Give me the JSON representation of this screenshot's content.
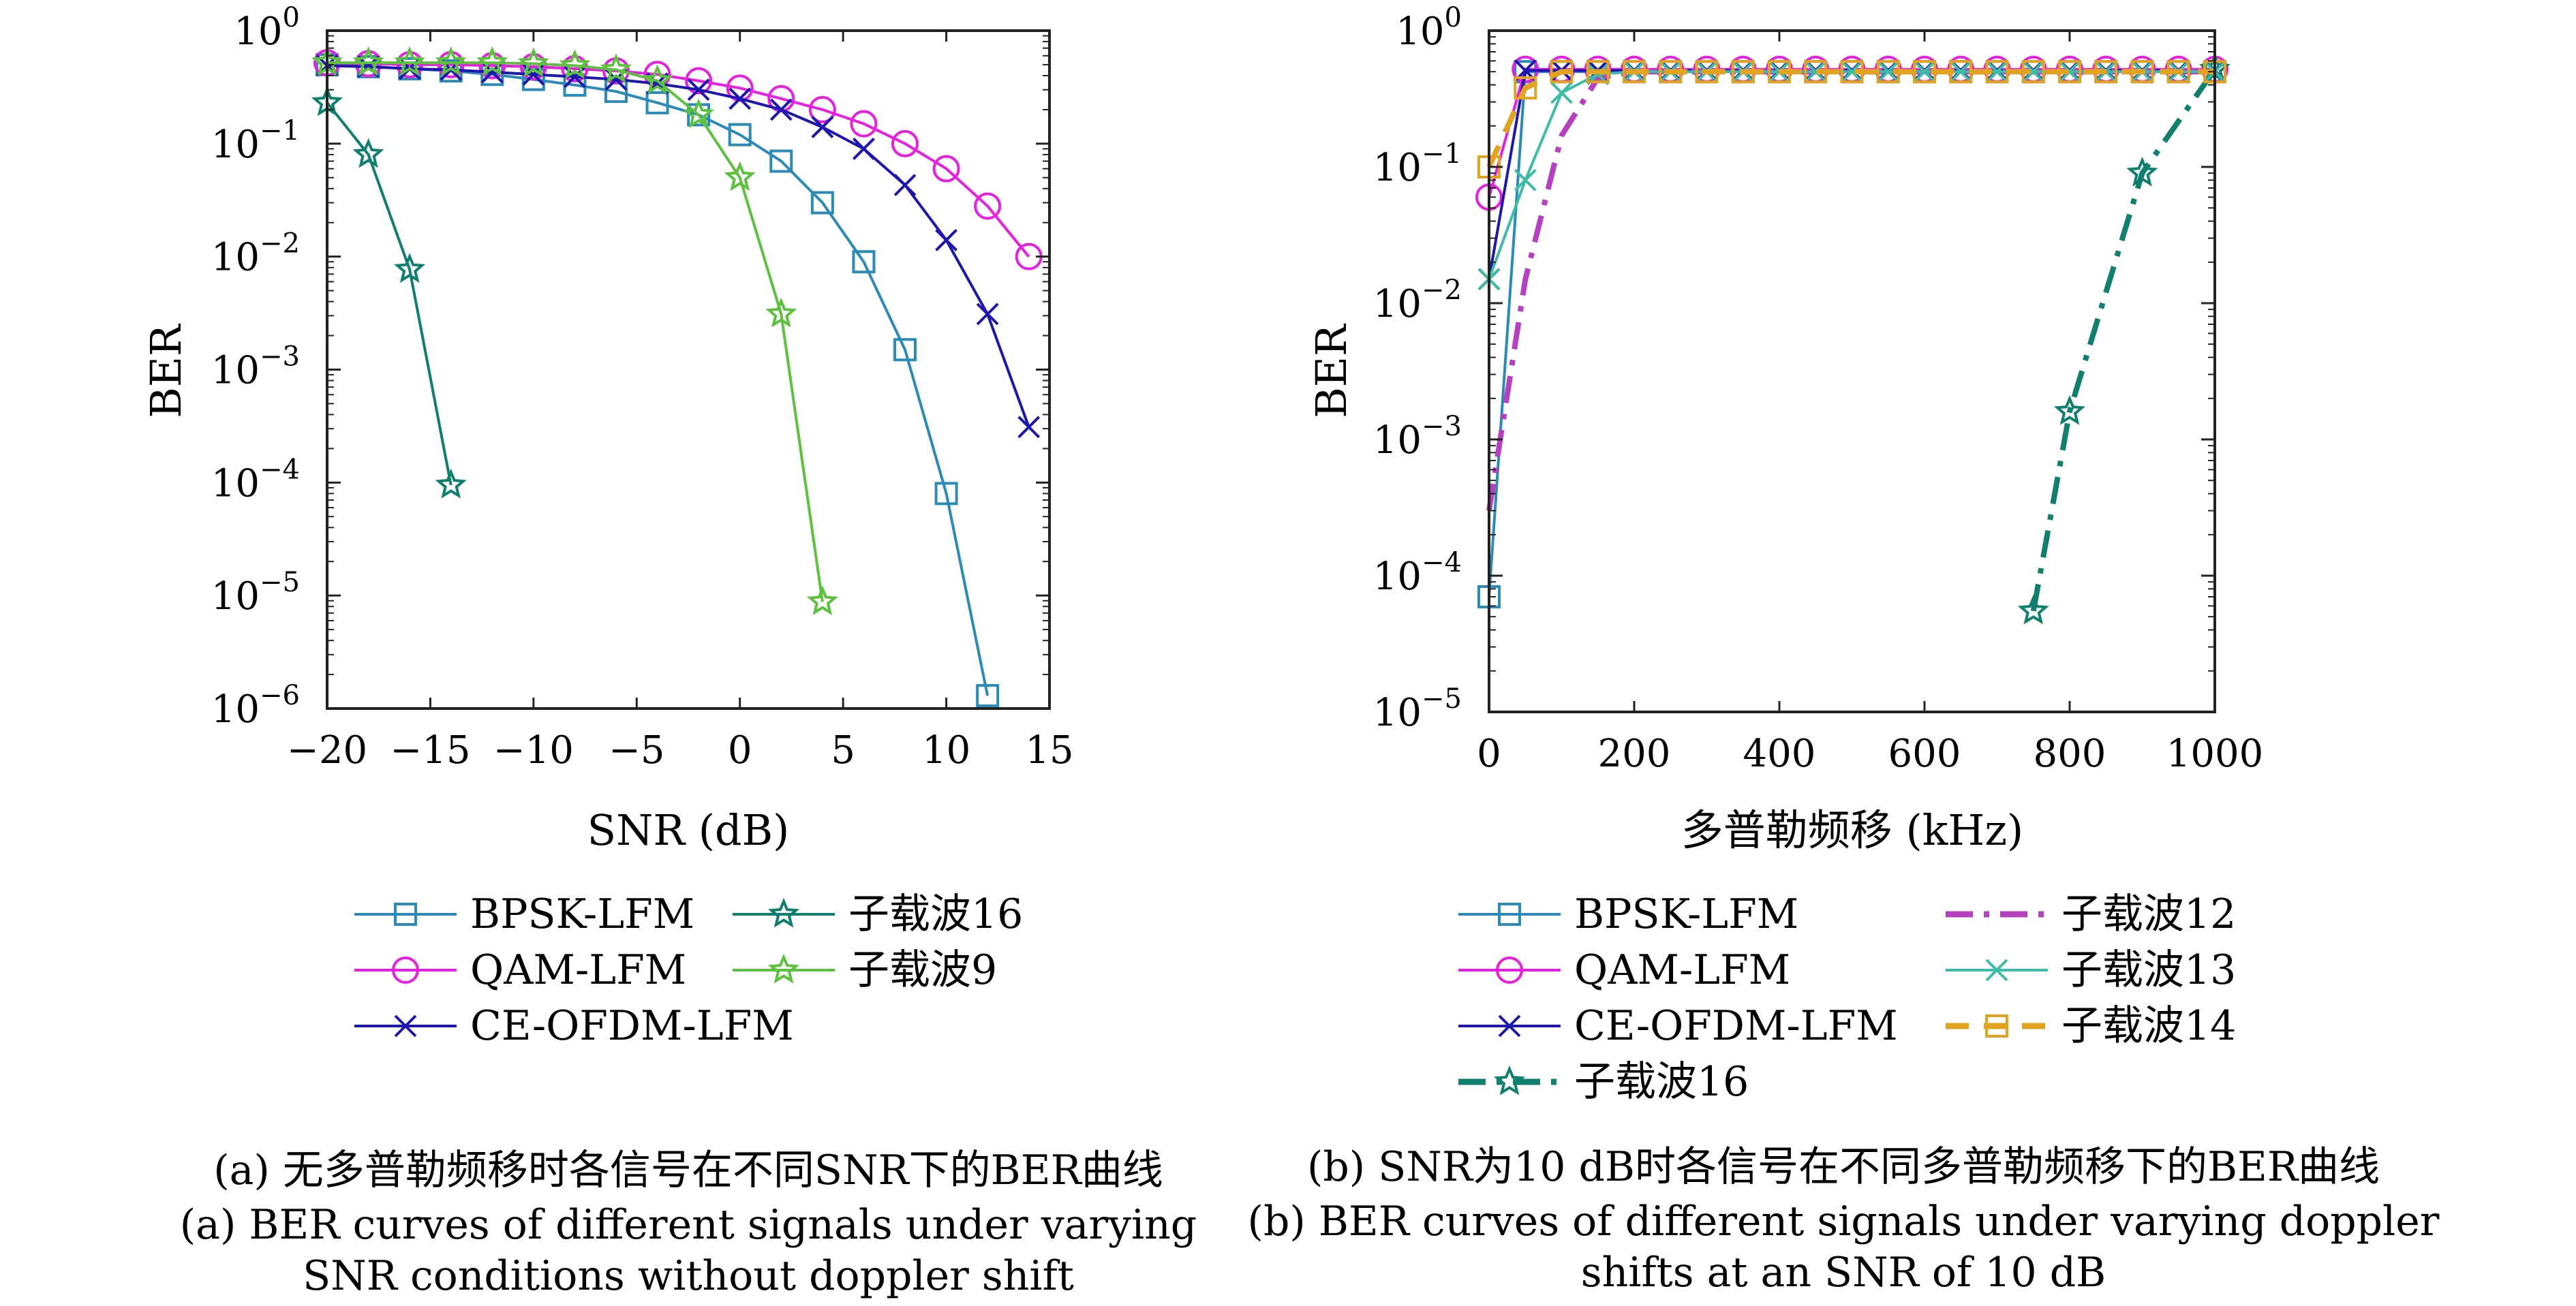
{
  "chart_data": [
    {
      "type": "line",
      "caption_cn": "(a) 无多普勒频移时各信号在不同SNR下的BER曲线",
      "caption_en_1": "(a) BER curves of different signals under varying",
      "caption_en_2": "SNR conditions without doppler shift",
      "xlabel": "SNR (dB)",
      "ylabel": "BER",
      "xlim": [
        -20,
        15
      ],
      "ylim": [
        1e-06,
        1
      ],
      "yscale": "log",
      "xticks": [
        "−20",
        "−15",
        "−10",
        "−5",
        "0",
        "5",
        "10",
        "15"
      ],
      "yticks_base": [
        "10",
        "10",
        "10",
        "10",
        "10",
        "10",
        "10"
      ],
      "yticks_exp": [
        "−6",
        "−5",
        "−4",
        "−3",
        "−2",
        "−1",
        "0"
      ],
      "legend_placement": "bottom",
      "series": [
        {
          "name": "BPSK-LFM",
          "color": "#2a8ab8",
          "marker": "square",
          "dash": "solid",
          "x": [
            -20,
            -18,
            -16,
            -14,
            -12,
            -10,
            -8,
            -6,
            -4,
            -2,
            0,
            2,
            4,
            6,
            8,
            10,
            12
          ],
          "y": [
            0.5,
            0.48,
            0.46,
            0.44,
            0.41,
            0.37,
            0.33,
            0.29,
            0.23,
            0.18,
            0.12,
            0.07,
            0.03,
            0.009,
            0.0015,
            8e-05,
            1.3e-06
          ]
        },
        {
          "name": "QAM-LFM",
          "color": "#e81ee0",
          "marker": "circle",
          "dash": "solid",
          "x": [
            -20,
            -18,
            -16,
            -14,
            -12,
            -10,
            -8,
            -6,
            -4,
            -2,
            0,
            2,
            4,
            6,
            8,
            10,
            12,
            14
          ],
          "y": [
            0.52,
            0.51,
            0.5,
            0.5,
            0.49,
            0.48,
            0.46,
            0.44,
            0.41,
            0.36,
            0.31,
            0.25,
            0.2,
            0.15,
            0.1,
            0.06,
            0.028,
            0.01
          ]
        },
        {
          "name": "CE-OFDM-LFM",
          "color": "#1d16b0",
          "marker": "x",
          "dash": "solid",
          "x": [
            -20,
            -18,
            -16,
            -14,
            -12,
            -10,
            -8,
            -6,
            -4,
            -2,
            0,
            2,
            4,
            6,
            8,
            10,
            12,
            14
          ],
          "y": [
            0.49,
            0.48,
            0.46,
            0.45,
            0.43,
            0.41,
            0.39,
            0.37,
            0.34,
            0.3,
            0.25,
            0.2,
            0.14,
            0.09,
            0.043,
            0.014,
            0.0031,
            0.00031
          ]
        },
        {
          "name": "子载波16",
          "color": "#0f7f6e",
          "marker": "star",
          "dash": "solid",
          "x": [
            -20,
            -18,
            -16,
            -14
          ],
          "y": [
            0.23,
            0.08,
            0.0077,
            9.5e-05
          ]
        },
        {
          "name": "子载波9",
          "color": "#5cc23e",
          "marker": "star",
          "dash": "solid",
          "x": [
            -20,
            -18,
            -16,
            -14,
            -12,
            -10,
            -8,
            -6,
            -4,
            -2,
            0,
            2,
            4
          ],
          "y": [
            0.52,
            0.52,
            0.52,
            0.52,
            0.52,
            0.51,
            0.49,
            0.45,
            0.36,
            0.18,
            0.05,
            0.0031,
            8.8e-06
          ]
        }
      ],
      "legend_order": [
        0,
        3,
        1,
        4,
        2
      ]
    },
    {
      "type": "line",
      "caption_cn": "(b) SNR为10 dB时各信号在不同多普勒频移下的BER曲线",
      "caption_en_1": "(b) BER curves of different signals under varying doppler",
      "caption_en_2": "shifts at an SNR of 10 dB",
      "xlabel": "多普勒频移 (kHz)",
      "ylabel": "BER",
      "xlim": [
        0,
        1000
      ],
      "ylim": [
        1e-05,
        1
      ],
      "yscale": "log",
      "xticks": [
        "0",
        "200",
        "400",
        "600",
        "800",
        "1000"
      ],
      "yticks_base": [
        "10",
        "10",
        "10",
        "10",
        "10",
        "10"
      ],
      "yticks_exp": [
        "−5",
        "−4",
        "−3",
        "−2",
        "−1",
        "0"
      ],
      "legend_placement": "bottom",
      "series": [
        {
          "name": "BPSK-LFM",
          "color": "#2a8ab8",
          "marker": "square",
          "dash": "solid",
          "x": [
            0,
            50,
            100,
            150,
            200,
            250,
            300,
            350,
            400,
            450,
            500,
            550,
            600,
            650,
            700,
            750,
            800,
            850,
            900,
            950,
            1000
          ],
          "y": [
            7e-05,
            0.5,
            0.5,
            0.5,
            0.5,
            0.5,
            0.5,
            0.5,
            0.5,
            0.5,
            0.5,
            0.5,
            0.5,
            0.5,
            0.5,
            0.5,
            0.5,
            0.5,
            0.5,
            0.5,
            0.5
          ]
        },
        {
          "name": "QAM-LFM",
          "color": "#e81ee0",
          "marker": "circle",
          "dash": "solid",
          "x": [
            0,
            50,
            100,
            150,
            200,
            250,
            300,
            350,
            400,
            450,
            500,
            550,
            600,
            650,
            700,
            750,
            800,
            850,
            900,
            950,
            1000
          ],
          "y": [
            0.06,
            0.52,
            0.52,
            0.52,
            0.52,
            0.52,
            0.52,
            0.52,
            0.52,
            0.52,
            0.52,
            0.52,
            0.52,
            0.52,
            0.52,
            0.52,
            0.52,
            0.52,
            0.52,
            0.52,
            0.52
          ]
        },
        {
          "name": "CE-OFDM-LFM",
          "color": "#1d16b0",
          "marker": "x",
          "dash": "solid",
          "x": [
            0,
            50,
            100,
            150,
            200,
            250,
            300,
            350,
            400,
            450,
            500,
            550,
            600,
            650,
            700,
            750,
            800,
            850,
            900,
            950,
            1000
          ],
          "y": [
            0.015,
            0.51,
            0.51,
            0.51,
            0.51,
            0.51,
            0.51,
            0.51,
            0.51,
            0.51,
            0.51,
            0.51,
            0.51,
            0.51,
            0.51,
            0.51,
            0.51,
            0.51,
            0.51,
            0.51,
            0.51
          ]
        },
        {
          "name": "子载波16",
          "color": "#0f7f6e",
          "marker": "star",
          "dash": "dashdot",
          "x": [
            750,
            800,
            900,
            1000
          ],
          "y": [
            5.5e-05,
            0.0016,
            0.09,
            0.52
          ]
        },
        {
          "name": "子载波12",
          "color": "#b640c0",
          "marker": "none",
          "dash": "dashdot",
          "x": [
            0,
            50,
            100,
            150,
            200,
            250,
            300,
            350,
            400,
            450,
            500,
            550,
            600,
            650,
            700,
            750,
            800,
            850,
            900,
            950,
            1000
          ],
          "y": [
            0.0003,
            0.015,
            0.17,
            0.45,
            0.5,
            0.5,
            0.5,
            0.5,
            0.5,
            0.5,
            0.5,
            0.5,
            0.5,
            0.5,
            0.5,
            0.5,
            0.5,
            0.5,
            0.5,
            0.5,
            0.5
          ]
        },
        {
          "name": "子载波13",
          "color": "#3ebda6",
          "marker": "x",
          "dash": "solid",
          "x": [
            0,
            50,
            100,
            150,
            200,
            250,
            300,
            350,
            400,
            450,
            500,
            550,
            600,
            650,
            700,
            750,
            800,
            850,
            900,
            950,
            1000
          ],
          "y": [
            0.015,
            0.08,
            0.35,
            0.48,
            0.5,
            0.5,
            0.5,
            0.5,
            0.5,
            0.5,
            0.5,
            0.5,
            0.5,
            0.5,
            0.5,
            0.5,
            0.5,
            0.5,
            0.5,
            0.5,
            0.5
          ]
        },
        {
          "name": "子载波14",
          "color": "#e2a41f",
          "marker": "square",
          "dash": "dashed",
          "x": [
            0,
            50,
            100,
            150,
            200,
            250,
            300,
            350,
            400,
            450,
            500,
            550,
            600,
            650,
            700,
            750,
            800,
            850,
            900,
            950,
            1000
          ],
          "y": [
            0.1,
            0.38,
            0.5,
            0.5,
            0.5,
            0.5,
            0.5,
            0.5,
            0.5,
            0.5,
            0.5,
            0.5,
            0.5,
            0.5,
            0.5,
            0.5,
            0.5,
            0.5,
            0.5,
            0.5,
            0.5
          ]
        }
      ],
      "legend_order": [
        0,
        4,
        1,
        5,
        2,
        6,
        3
      ]
    }
  ]
}
